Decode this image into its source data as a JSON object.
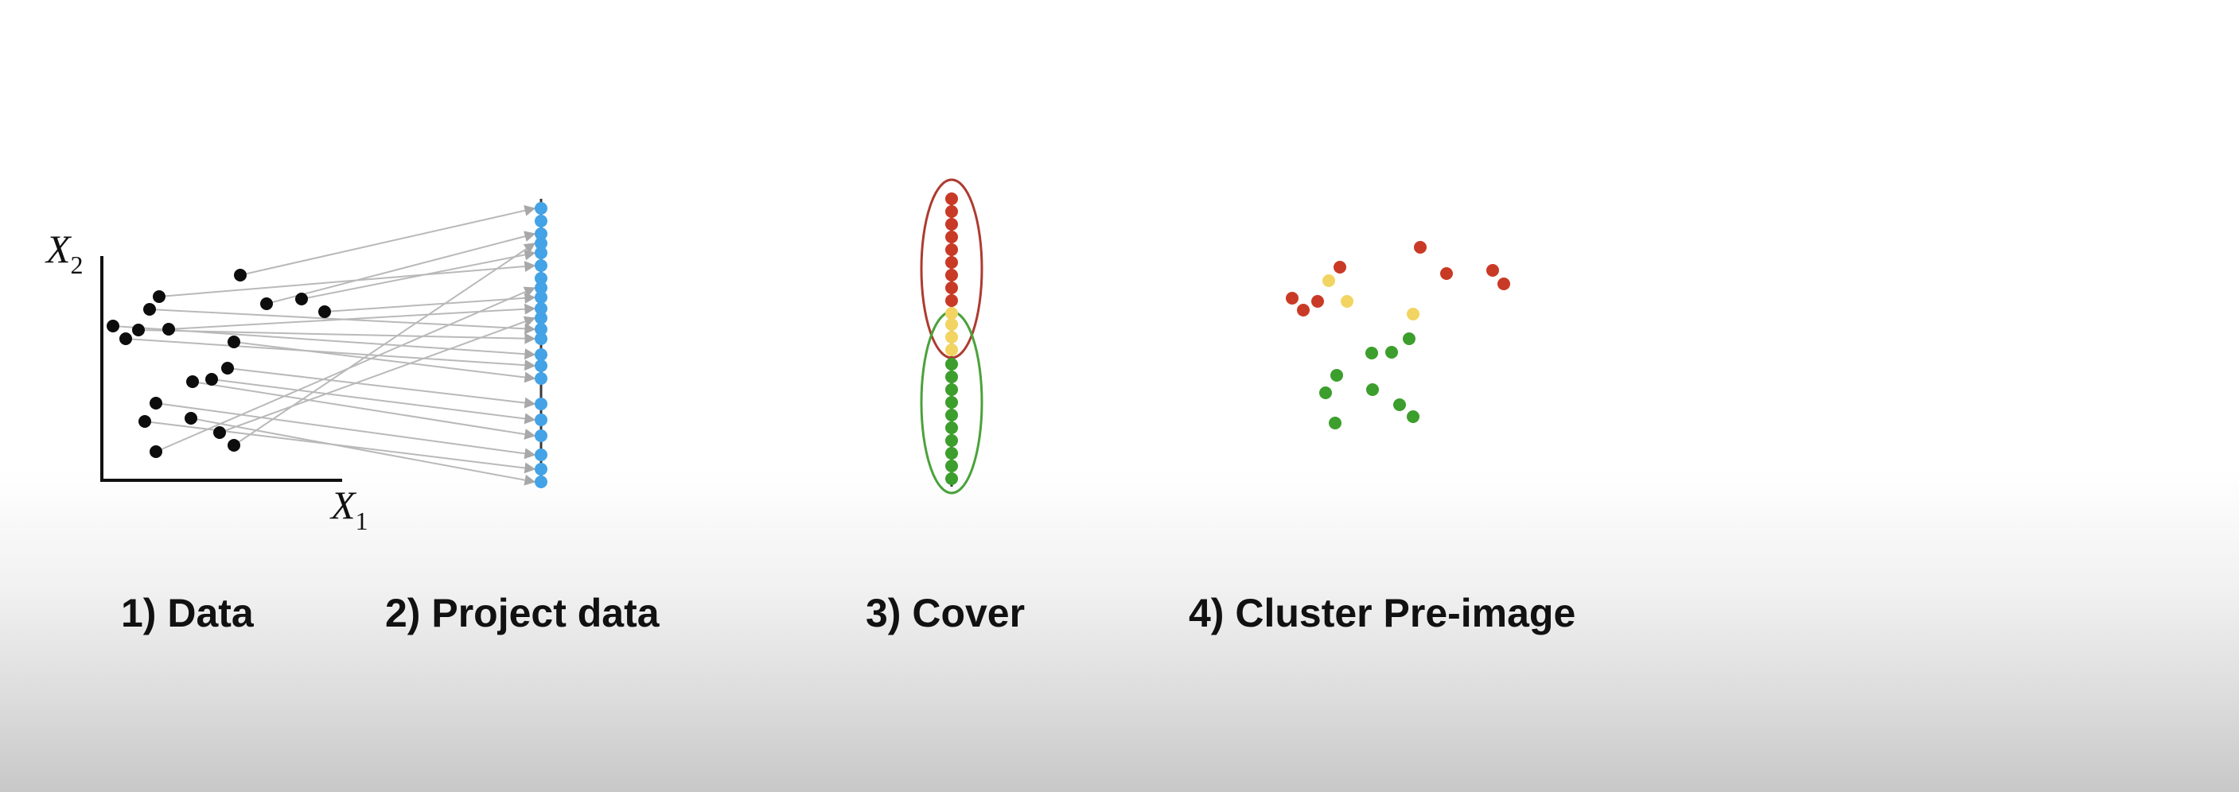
{
  "colors": {
    "data_point": "#0d0d0d",
    "projected_point": "#43a3e6",
    "arrow": "#b9b9b9",
    "axis": "#111111",
    "cover_top": "#c93a26",
    "cover_bottom": "#3c9e2c",
    "overlap": "#f2d462",
    "cover_top_ellipse": "#ad3b2f",
    "cover_bottom_ellipse": "#4aa23a"
  },
  "axes": {
    "x_label": "X",
    "x_sub": "1",
    "y_label": "X",
    "y_sub": "2"
  },
  "steps": [
    {
      "label": "1) Data"
    },
    {
      "label": "2) Project data"
    },
    {
      "label": "3) Cover"
    },
    {
      "label": "4) Cluster Pre-image"
    }
  ]
}
